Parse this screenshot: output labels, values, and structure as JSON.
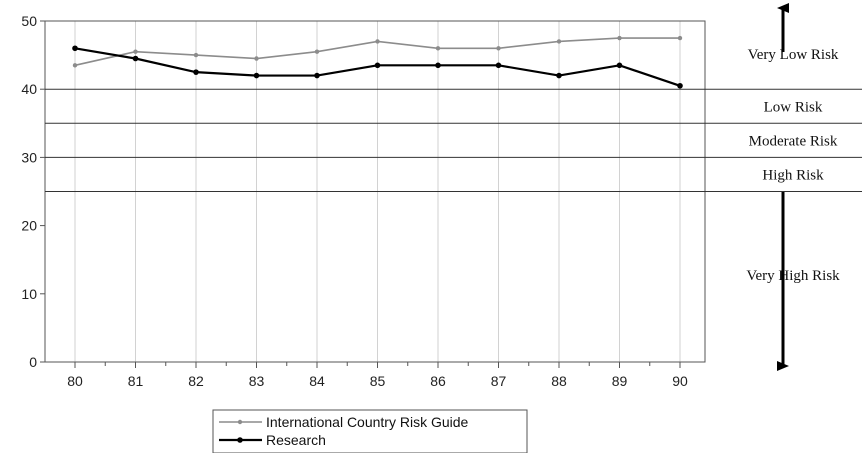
{
  "chart_data": {
    "type": "line",
    "categories": [
      "80",
      "81",
      "82",
      "83",
      "84",
      "85",
      "86",
      "87",
      "88",
      "89",
      "90"
    ],
    "ylim": [
      0,
      50
    ],
    "yticks": [
      "0",
      "10",
      "20",
      "30",
      "40",
      "50"
    ],
    "grid": "vertical lines at each category",
    "series": [
      {
        "name": "International Country Risk Guide",
        "color": "#8c8c8c",
        "values": [
          43.5,
          45.5,
          45,
          44.5,
          45.5,
          47,
          46,
          46,
          47,
          47.5,
          47.5
        ]
      },
      {
        "name": "Research",
        "color": "#000000",
        "values": [
          46,
          44.5,
          42.5,
          42,
          42,
          43.5,
          43.5,
          43.5,
          42,
          43.5,
          40.5
        ]
      }
    ],
    "risk_thresholds": [
      40,
      35,
      30,
      25
    ],
    "risk_bands": [
      {
        "label": "Very Low Risk",
        "from": 40,
        "to": 50
      },
      {
        "label": "Low Risk",
        "from": 35,
        "to": 40
      },
      {
        "label": "Moderate Risk",
        "from": 30,
        "to": 35
      },
      {
        "label": "High Risk",
        "from": 25,
        "to": 30
      },
      {
        "label": "Very High Risk",
        "from": 0,
        "to": 25
      }
    ],
    "legend_position": "bottom-center"
  }
}
